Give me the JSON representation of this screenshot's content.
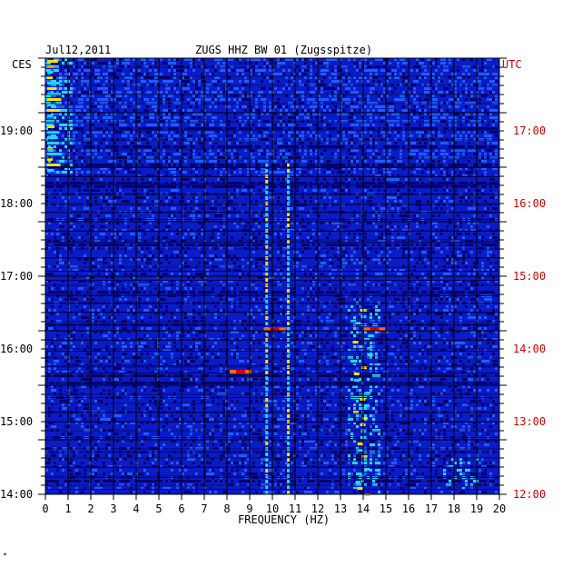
{
  "header": {
    "date": "Jul12,2011",
    "station": "ZUGS HHZ BW 01 (Zugsspitze)",
    "left_zone": "CES",
    "right_zone": "UTC"
  },
  "chart_data": {
    "type": "heatmap",
    "title": "ZUGS HHZ BW 01 (Zugsspitze)",
    "xlabel": "FREQUENCY (HZ)",
    "xlim": [
      0,
      20
    ],
    "x_ticks": [
      "0",
      "1",
      "2",
      "3",
      "4",
      "5",
      "6",
      "7",
      "8",
      "9",
      "10",
      "11",
      "12",
      "13",
      "14",
      "15",
      "16",
      "17",
      "18",
      "19",
      "20"
    ],
    "left_axis": {
      "label": "CES",
      "ticks": [
        "19:00",
        "18:00",
        "17:00",
        "16:00",
        "15:00",
        "14:00"
      ]
    },
    "right_axis": {
      "label": "UTC",
      "ticks": [
        "17:00",
        "16:00",
        "15:00",
        "14:00",
        "13:00",
        "12:00"
      ]
    },
    "grid": true,
    "colors": {
      "background": "#0a1cc8",
      "dark": "#00006e",
      "mid": "#1e5cff",
      "cyan": "#22d8ff",
      "yellow": "#ffe000",
      "orange": "#ff6a00",
      "red": "#d40000",
      "right_axis": "#cc0000"
    },
    "features": [
      {
        "kind": "vertical-line",
        "freq_hz": 9.75,
        "level": "cyan"
      },
      {
        "kind": "vertical-line",
        "freq_hz": 10.7,
        "level": "cyan"
      },
      {
        "kind": "band",
        "freq_range_hz": [
          13.5,
          14.5
        ],
        "level": "cyan"
      },
      {
        "kind": "spot",
        "freq_hz": 8.6,
        "time_ces": "15:42",
        "level": "red"
      },
      {
        "kind": "spot",
        "freq_hz": 10.1,
        "time_ces": "16:17",
        "level": "red"
      },
      {
        "kind": "spot",
        "freq_hz": 14.5,
        "time_ces": "16:17",
        "level": "red"
      }
    ]
  },
  "corner_mark": "*"
}
